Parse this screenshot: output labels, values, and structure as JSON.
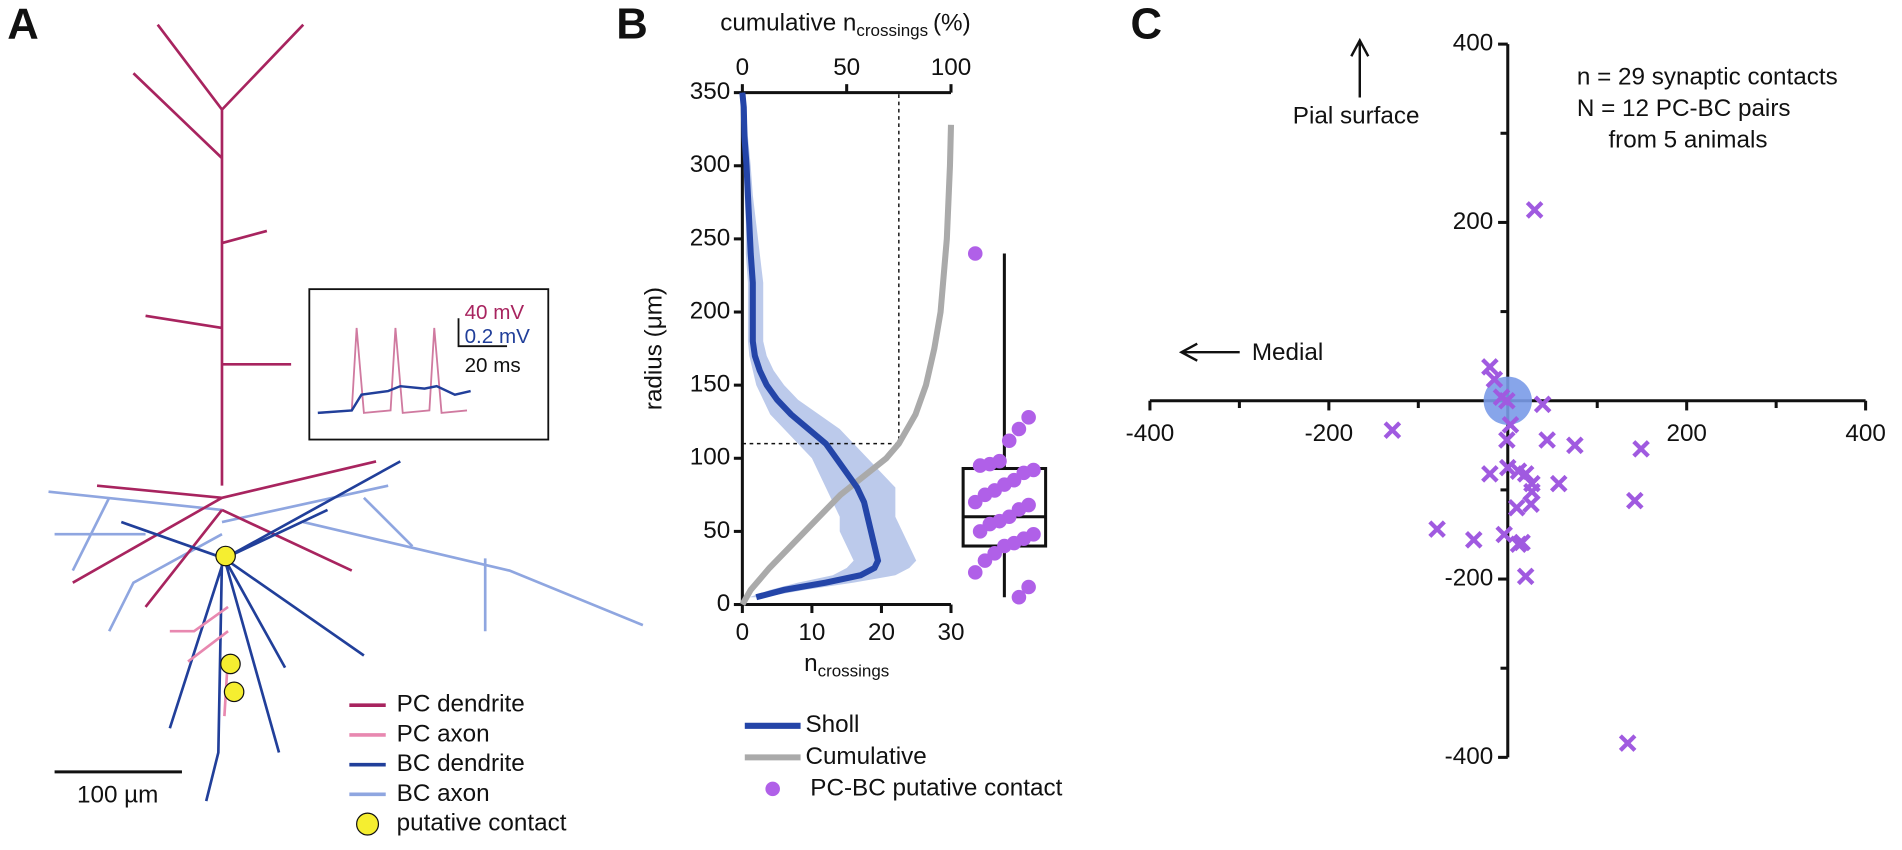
{
  "panel_a": {
    "label": "A",
    "legend": [
      {
        "name": "PC dendrite",
        "color": "#a8245f"
      },
      {
        "name": "PC axon",
        "color": "#e888b0"
      },
      {
        "name": "BC dendrite",
        "color": "#213f9a"
      },
      {
        "name": "BC axon",
        "color": "#8fa6e0"
      },
      {
        "name": "putative contact",
        "color": "#f5ee30"
      }
    ],
    "scale_bar": "100 µm",
    "inset": {
      "voltage_pc": "40 mV",
      "voltage_bc": "0.2 mV",
      "time": "20 ms"
    }
  },
  "chart_data": [
    {
      "type": "line",
      "panel": "B",
      "xlabel": {
        "text": "n",
        "sub": "crossings"
      },
      "x2label": {
        "text": "cumulative n",
        "sub": "crossings",
        "suffix": "(%)"
      },
      "ylabel": "radius (μm)",
      "xlim": [
        0,
        30
      ],
      "xticks": [
        0,
        10,
        20,
        30
      ],
      "x2lim": [
        0,
        100
      ],
      "x2ticks": [
        0,
        50,
        100
      ],
      "ylim": [
        0,
        350
      ],
      "yticks": [
        0,
        50,
        100,
        150,
        200,
        250,
        300,
        350
      ],
      "series": [
        {
          "name": "Sholl",
          "color": "#2445a8",
          "y": [
            5,
            10,
            15,
            20,
            25,
            30,
            40,
            50,
            60,
            70,
            80,
            90,
            100,
            110,
            120,
            130,
            140,
            150,
            160,
            170,
            180,
            200,
            220,
            240,
            260,
            280,
            300,
            320,
            340,
            350
          ],
          "x": [
            2,
            6,
            12,
            17,
            19,
            19.5,
            19,
            18.5,
            18,
            17.5,
            16.5,
            15,
            13.5,
            12,
            9.5,
            7,
            5,
            3.5,
            2.5,
            1.8,
            1.5,
            1.5,
            1.5,
            1.2,
            1,
            0.8,
            0.6,
            0.3,
            0.2,
            0
          ],
          "band": {
            "color": "#bccaeb",
            "lower": [
              1,
              4,
              8,
              13,
              15,
              16,
              15,
              14,
              14,
              13,
              12,
              11,
              10,
              8,
              6,
              4,
              3,
              2,
              1.5,
              1,
              0.8,
              0.8,
              0.8,
              0.5,
              0.5,
              0.3,
              0.2,
              0,
              0,
              0
            ],
            "upper": [
              3,
              9,
              16,
              22,
              24,
              25,
              24,
              23,
              22,
              22,
              22,
              20,
              18,
              16,
              14,
              11,
              8,
              6,
              4.5,
              3.5,
              3,
              3,
              3,
              2.5,
              2,
              1.5,
              1.2,
              0.8,
              0.5,
              0.2
            ]
          }
        },
        {
          "name": "Cumulative",
          "color": "#aaaaaa",
          "axis": "x2",
          "y": [
            0,
            10,
            25,
            50,
            75,
            100,
            110,
            130,
            150,
            175,
            200,
            250,
            300,
            328
          ],
          "x": [
            0,
            4,
            13,
            30,
            47,
            69,
            75,
            83,
            88,
            92,
            95,
            98,
            99.5,
            100
          ]
        },
        {
          "name": "PC-BC putative contact",
          "color": "#b060e8",
          "type": "box",
          "values": [
            240,
            128,
            120,
            112,
            98,
            96,
            95,
            92,
            90,
            85,
            82,
            78,
            75,
            70,
            68,
            65,
            60,
            57,
            55,
            50,
            48,
            45,
            42,
            40,
            35,
            30,
            22,
            12,
            5
          ],
          "box": {
            "min": 5,
            "q1": 40,
            "median": 60,
            "q3": 93,
            "max": 240
          }
        }
      ],
      "reference": {
        "y": 110,
        "x2": 75
      }
    },
    {
      "type": "scatter",
      "panel": "C",
      "xlim": [
        -400,
        400
      ],
      "ylim": [
        -400,
        400
      ],
      "xticks": [
        -400,
        -200,
        200,
        400
      ],
      "yticks": [
        -400,
        -200,
        200,
        400
      ],
      "minor_ticks": [
        -300,
        -100,
        100,
        300
      ],
      "series": [
        {
          "color": "#a05ae0",
          "x": [
            30,
            -20,
            -15,
            -1,
            39,
            -129,
            -1,
            44,
            75,
            149,
            0,
            -20,
            12,
            27,
            57,
            27,
            142,
            10,
            26,
            -79,
            -38,
            -4,
            12,
            20,
            134,
            -7,
            16,
            20,
            3
          ],
          "y": [
            214,
            38,
            24,
            0,
            -4,
            -33,
            -44,
            -44,
            -50,
            -54,
            -75,
            -82,
            -79,
            -93,
            -93,
            -102,
            -112,
            -120,
            -116,
            -144,
            -156,
            -150,
            -161,
            -197,
            -384,
            4,
            -159,
            -82,
            -27
          ]
        }
      ],
      "soma": {
        "x": 0,
        "y": 0,
        "r": 27,
        "color": "#7a9be8"
      },
      "annotations": [
        "n = 29 synaptic contacts",
        "N = 12 PC-BC pairs",
        "from 5 animals"
      ],
      "arrows": {
        "up": "Pial surface",
        "left": "Medial"
      }
    }
  ]
}
